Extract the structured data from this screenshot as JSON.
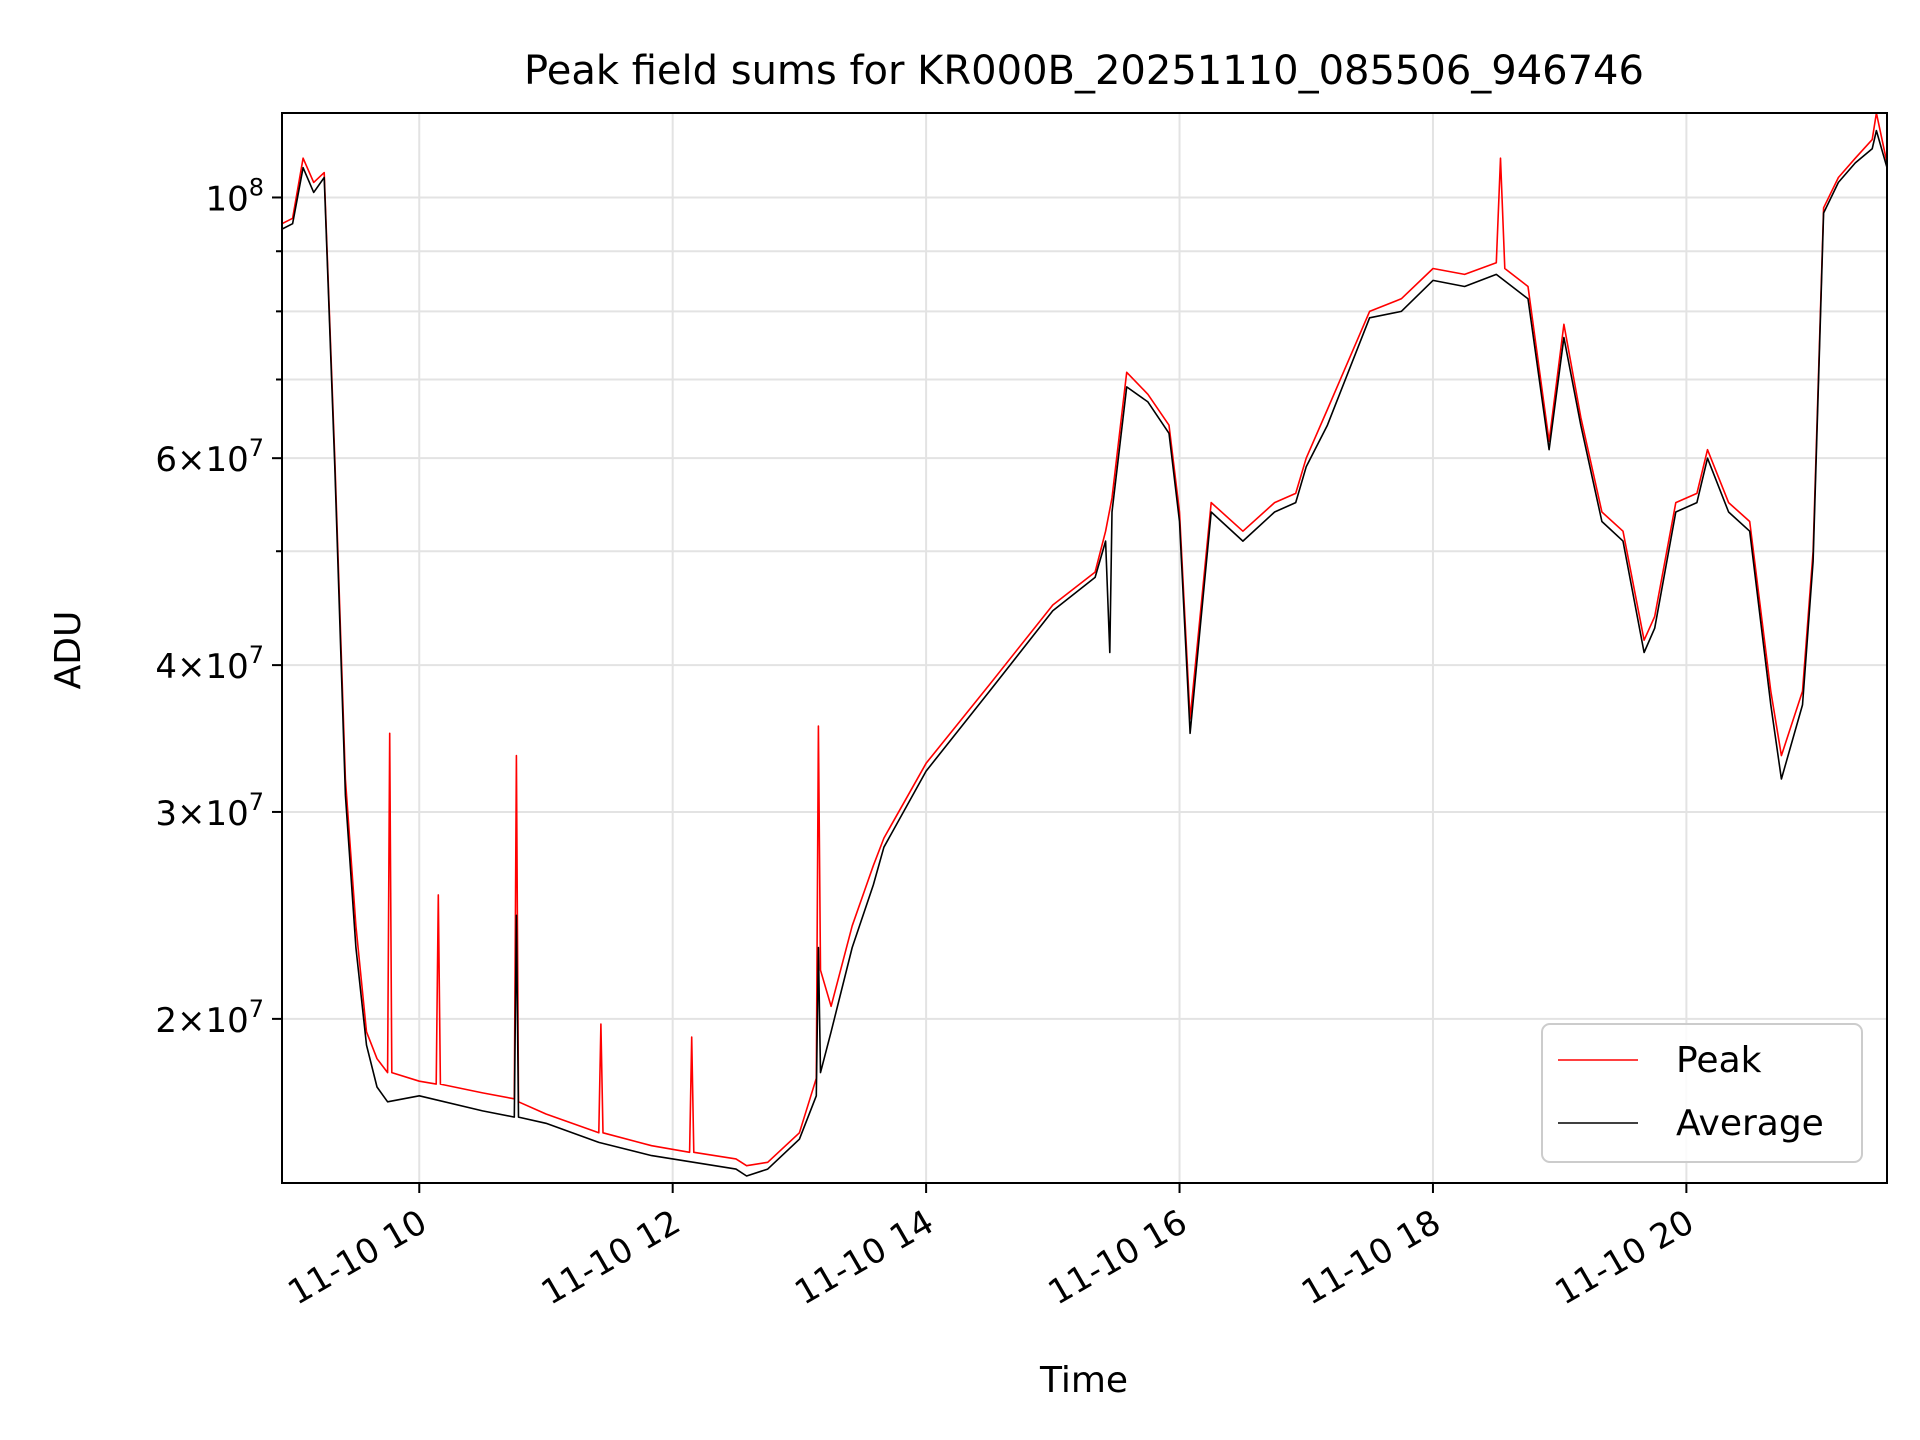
{
  "chart_data": {
    "type": "line",
    "title": "Peak field sums for KR000B_20251110_085506_946746",
    "xlabel": "Time",
    "ylabel": "ADU",
    "y_scale": "log",
    "xlim": [
      "2025-11-10 08:55",
      "2025-11-10 21:35"
    ],
    "ylim": [
      14500000,
      118000000
    ],
    "grid": true,
    "legend": {
      "position": "lower-right",
      "entries": [
        "Peak",
        "Average"
      ]
    },
    "x_tick_labels": [
      "11-10 10",
      "11-10 12",
      "11-10 14",
      "11-10 16",
      "11-10 18",
      "11-10 20"
    ],
    "x_tick_values": [
      "2025-11-10 10:00",
      "2025-11-10 12:00",
      "2025-11-10 14:00",
      "2025-11-10 16:00",
      "2025-11-10 18:00",
      "2025-11-10 20:00"
    ],
    "y_tick_labels": [
      {
        "value": 20000000,
        "mantissa": "2",
        "base": "10",
        "exp": "7"
      },
      {
        "value": 30000000,
        "mantissa": "3",
        "base": "10",
        "exp": "7"
      },
      {
        "value": 40000000,
        "mantissa": "4",
        "base": "10",
        "exp": "7"
      },
      {
        "value": 60000000,
        "mantissa": "6",
        "base": "10",
        "exp": "7"
      },
      {
        "value": 100000000,
        "mantissa": "",
        "base": "10",
        "exp": "8"
      }
    ],
    "series": [
      {
        "name": "Peak",
        "color": "#ff0000",
        "x": [
          "2025-11-10 08:55",
          "2025-11-10 09:00",
          "2025-11-10 09:05",
          "2025-11-10 09:10",
          "2025-11-10 09:15",
          "2025-11-10 09:20",
          "2025-11-10 09:25",
          "2025-11-10 09:30",
          "2025-11-10 09:35",
          "2025-11-10 09:40",
          "2025-11-10 09:45",
          "2025-11-10 09:46",
          "2025-11-10 09:47",
          "2025-11-10 10:00",
          "2025-11-10 10:08",
          "2025-11-10 10:09",
          "2025-11-10 10:10",
          "2025-11-10 10:30",
          "2025-11-10 10:45",
          "2025-11-10 10:46",
          "2025-11-10 10:47",
          "2025-11-10 11:00",
          "2025-11-10 11:25",
          "2025-11-10 11:26",
          "2025-11-10 11:27",
          "2025-11-10 11:50",
          "2025-11-10 12:08",
          "2025-11-10 12:09",
          "2025-11-10 12:10",
          "2025-11-10 12:30",
          "2025-11-10 12:35",
          "2025-11-10 12:45",
          "2025-11-10 13:00",
          "2025-11-10 13:08",
          "2025-11-10 13:09",
          "2025-11-10 13:10",
          "2025-11-10 13:15",
          "2025-11-10 13:25",
          "2025-11-10 13:35",
          "2025-11-10 13:40",
          "2025-11-10 14:00",
          "2025-11-10 14:30",
          "2025-11-10 15:00",
          "2025-11-10 15:20",
          "2025-11-10 15:25",
          "2025-11-10 15:28",
          "2025-11-10 15:35",
          "2025-11-10 15:45",
          "2025-11-10 15:55",
          "2025-11-10 16:00",
          "2025-11-10 16:05",
          "2025-11-10 16:15",
          "2025-11-10 16:30",
          "2025-11-10 16:45",
          "2025-11-10 16:55",
          "2025-11-10 17:00",
          "2025-11-10 17:10",
          "2025-11-10 17:30",
          "2025-11-10 17:45",
          "2025-11-10 18:00",
          "2025-11-10 18:15",
          "2025-11-10 18:30",
          "2025-11-10 18:32",
          "2025-11-10 18:34",
          "2025-11-10 18:45",
          "2025-11-10 18:55",
          "2025-11-10 19:02",
          "2025-11-10 19:10",
          "2025-11-10 19:20",
          "2025-11-10 19:30",
          "2025-11-10 19:40",
          "2025-11-10 19:45",
          "2025-11-10 19:55",
          "2025-11-10 20:05",
          "2025-11-10 20:10",
          "2025-11-10 20:20",
          "2025-11-10 20:30",
          "2025-11-10 20:40",
          "2025-11-10 20:45",
          "2025-11-10 20:55",
          "2025-11-10 21:00",
          "2025-11-10 21:05",
          "2025-11-10 21:12",
          "2025-11-10 21:20",
          "2025-11-10 21:28",
          "2025-11-10 21:30",
          "2025-11-10 21:35"
        ],
        "y": [
          95000000,
          96000000,
          108000000,
          103000000,
          105000000,
          60000000,
          32000000,
          24000000,
          19500000,
          18500000,
          18000000,
          35000000,
          18000000,
          17700000,
          17600000,
          25500000,
          17600000,
          17300000,
          17100000,
          33500000,
          17000000,
          16600000,
          16000000,
          19800000,
          16000000,
          15600000,
          15400000,
          19300000,
          15400000,
          15200000,
          15000000,
          15100000,
          16000000,
          17800000,
          35500000,
          22000000,
          20500000,
          24000000,
          27000000,
          28500000,
          33000000,
          38500000,
          45000000,
          48000000,
          52000000,
          55500000,
          71000000,
          68000000,
          64000000,
          54000000,
          36000000,
          55000000,
          52000000,
          55000000,
          56000000,
          60000000,
          66000000,
          80000000,
          82000000,
          87000000,
          86000000,
          88000000,
          108000000,
          87000000,
          84000000,
          62000000,
          78000000,
          65000000,
          54000000,
          52000000,
          42000000,
          44000000,
          55000000,
          56000000,
          61000000,
          55000000,
          53000000,
          38000000,
          33500000,
          38000000,
          50000000,
          98000000,
          104000000,
          108000000,
          112000000,
          118000000,
          107000000
        ]
      },
      {
        "name": "Average",
        "color": "#000000",
        "x": [
          "2025-11-10 08:55",
          "2025-11-10 09:00",
          "2025-11-10 09:05",
          "2025-11-10 09:10",
          "2025-11-10 09:15",
          "2025-11-10 09:20",
          "2025-11-10 09:25",
          "2025-11-10 09:30",
          "2025-11-10 09:35",
          "2025-11-10 09:40",
          "2025-11-10 09:45",
          "2025-11-10 10:00",
          "2025-11-10 10:30",
          "2025-11-10 10:45",
          "2025-11-10 10:46",
          "2025-11-10 10:47",
          "2025-11-10 11:00",
          "2025-11-10 11:25",
          "2025-11-10 11:50",
          "2025-11-10 12:10",
          "2025-11-10 12:30",
          "2025-11-10 12:35",
          "2025-11-10 12:45",
          "2025-11-10 13:00",
          "2025-11-10 13:08",
          "2025-11-10 13:09",
          "2025-11-10 13:10",
          "2025-11-10 13:15",
          "2025-11-10 13:25",
          "2025-11-10 13:35",
          "2025-11-10 13:40",
          "2025-11-10 14:00",
          "2025-11-10 14:30",
          "2025-11-10 15:00",
          "2025-11-10 15:20",
          "2025-11-10 15:25",
          "2025-11-10 15:27",
          "2025-11-10 15:28",
          "2025-11-10 15:35",
          "2025-11-10 15:45",
          "2025-11-10 15:55",
          "2025-11-10 16:00",
          "2025-11-10 16:05",
          "2025-11-10 16:15",
          "2025-11-10 16:30",
          "2025-11-10 16:45",
          "2025-11-10 16:55",
          "2025-11-10 17:00",
          "2025-11-10 17:10",
          "2025-11-10 17:30",
          "2025-11-10 17:45",
          "2025-11-10 18:00",
          "2025-11-10 18:15",
          "2025-11-10 18:30",
          "2025-11-10 18:45",
          "2025-11-10 18:55",
          "2025-11-10 19:02",
          "2025-11-10 19:10",
          "2025-11-10 19:20",
          "2025-11-10 19:30",
          "2025-11-10 19:40",
          "2025-11-10 19:45",
          "2025-11-10 19:55",
          "2025-11-10 20:05",
          "2025-11-10 20:10",
          "2025-11-10 20:20",
          "2025-11-10 20:30",
          "2025-11-10 20:40",
          "2025-11-10 20:45",
          "2025-11-10 20:55",
          "2025-11-10 21:00",
          "2025-11-10 21:05",
          "2025-11-10 21:12",
          "2025-11-10 21:20",
          "2025-11-10 21:28",
          "2025-11-10 21:30",
          "2025-11-10 21:35"
        ],
        "y": [
          94000000,
          95000000,
          106000000,
          101000000,
          104000000,
          59000000,
          31000000,
          23000000,
          19000000,
          17500000,
          17000000,
          17200000,
          16700000,
          16500000,
          24500000,
          16500000,
          16300000,
          15700000,
          15300000,
          15100000,
          14900000,
          14700000,
          14900000,
          15800000,
          17200000,
          23000000,
          18000000,
          19500000,
          23000000,
          26000000,
          28000000,
          32500000,
          38000000,
          44500000,
          47500000,
          51000000,
          41000000,
          54000000,
          69000000,
          67000000,
          63000000,
          53000000,
          35000000,
          54000000,
          51000000,
          54000000,
          55000000,
          59000000,
          64000000,
          79000000,
          80000000,
          85000000,
          84000000,
          86000000,
          82000000,
          61000000,
          76000000,
          64000000,
          53000000,
          51000000,
          41000000,
          43000000,
          54000000,
          55000000,
          60000000,
          54000000,
          52000000,
          37000000,
          32000000,
          37000000,
          49000000,
          97000000,
          103000000,
          107000000,
          110000000,
          114000000,
          106000000
        ]
      }
    ]
  }
}
